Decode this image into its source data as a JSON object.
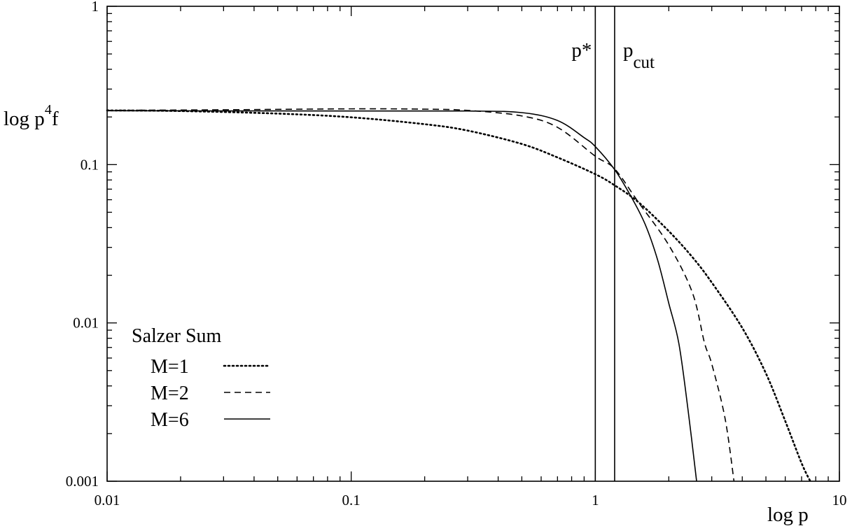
{
  "chart_data": {
    "type": "line",
    "xlabel": "log p",
    "ylabel": "log p⁴f",
    "xscale": "log",
    "yscale": "log",
    "xlim": [
      0.01,
      10
    ],
    "ylim": [
      0.001,
      1
    ],
    "grid": false,
    "x_ticks": [
      {
        "value": 0.01,
        "label": "0.01"
      },
      {
        "value": 0.1,
        "label": "0.1"
      },
      {
        "value": 1,
        "label": "1"
      },
      {
        "value": 10,
        "label": "10"
      }
    ],
    "y_ticks": [
      {
        "value": 0.001,
        "label": "0.001"
      },
      {
        "value": 0.01,
        "label": "0.01"
      },
      {
        "value": 0.1,
        "label": "0.1"
      },
      {
        "value": 1,
        "label": "1"
      }
    ],
    "vertical_markers": [
      {
        "x": 1.0,
        "label": "p*",
        "label_main": "p*",
        "label_sub": ""
      },
      {
        "x": 1.2,
        "label": "pcut",
        "label_main": "p",
        "label_sub": "cut"
      }
    ],
    "legend": {
      "title": "Salzer Sum",
      "position": "bottom-left"
    },
    "series": [
      {
        "name": "M=1",
        "style": "dotted",
        "points": [
          [
            0.01,
            0.22
          ],
          [
            0.02,
            0.218
          ],
          [
            0.05,
            0.21
          ],
          [
            0.1,
            0.199
          ],
          [
            0.2,
            0.18
          ],
          [
            0.3,
            0.164
          ],
          [
            0.5,
            0.135
          ],
          [
            0.7,
            0.111
          ],
          [
            1.0,
            0.087
          ],
          [
            1.2,
            0.074
          ],
          [
            1.5,
            0.058
          ],
          [
            2.0,
            0.038
          ],
          [
            2.5,
            0.026
          ],
          [
            3.0,
            0.018
          ],
          [
            4.0,
            0.0093
          ],
          [
            5.0,
            0.0048
          ],
          [
            6.0,
            0.0024
          ],
          [
            7.0,
            0.0013
          ],
          [
            7.6,
            0.001
          ]
        ]
      },
      {
        "name": "M=2",
        "style": "dashed",
        "points": [
          [
            0.01,
            0.22
          ],
          [
            0.03,
            0.222
          ],
          [
            0.1,
            0.225
          ],
          [
            0.2,
            0.224
          ],
          [
            0.3,
            0.22
          ],
          [
            0.5,
            0.203
          ],
          [
            0.7,
            0.172
          ],
          [
            1.0,
            0.113
          ],
          [
            1.2,
            0.094
          ],
          [
            1.5,
            0.058
          ],
          [
            2.0,
            0.031
          ],
          [
            2.5,
            0.0155
          ],
          [
            2.8,
            0.0075
          ],
          [
            3.0,
            0.0055
          ],
          [
            3.4,
            0.0025
          ],
          [
            3.7,
            0.001
          ]
        ]
      },
      {
        "name": "M=6",
        "style": "solid",
        "points": [
          [
            0.01,
            0.219
          ],
          [
            0.1,
            0.218
          ],
          [
            0.3,
            0.218
          ],
          [
            0.5,
            0.213
          ],
          [
            0.7,
            0.19
          ],
          [
            0.9,
            0.148
          ],
          [
            1.0,
            0.13
          ],
          [
            1.2,
            0.093
          ],
          [
            1.4,
            0.063
          ],
          [
            1.6,
            0.042
          ],
          [
            1.8,
            0.025
          ],
          [
            2.0,
            0.0133
          ],
          [
            2.2,
            0.0074
          ],
          [
            2.4,
            0.0028
          ],
          [
            2.6,
            0.001
          ]
        ]
      }
    ]
  }
}
